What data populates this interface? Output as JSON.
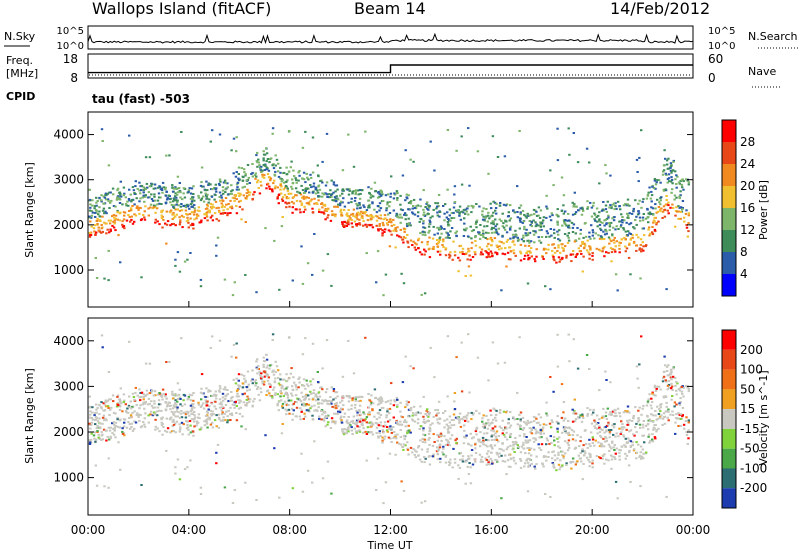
{
  "header": {
    "station": "Wallops Island (fitACF)",
    "beam": "Beam 14",
    "date": "14/Feb/2012"
  },
  "chart_data": [
    {
      "type": "line",
      "panel": "noise",
      "left_label": "N.Sky",
      "right_label": "N.Search",
      "left_ticks": [
        "10^5",
        "10^0"
      ],
      "right_ticks": [
        "10^5",
        "10^0"
      ]
    },
    {
      "type": "line",
      "panel": "frequency",
      "left_label_top": "Freq.",
      "left_label_bottom": "[MHz]",
      "right_label": "Nave",
      "left_ticks": [
        "18",
        "8"
      ],
      "right_ticks": [
        "60",
        "0"
      ],
      "freq_steps": [
        {
          "t": 0.0,
          "mhz": 10.7
        },
        {
          "t": 12.0,
          "mhz": 14.5
        },
        {
          "t": 24.0,
          "mhz": 14.5
        }
      ]
    },
    {
      "type": "text",
      "panel": "cpid",
      "label": "CPID",
      "mode": "tau (fast) -503"
    },
    {
      "type": "heatmap",
      "panel": "power",
      "ylabel": "Slant Range [km]",
      "ylim": [
        180,
        4500
      ],
      "yticks": [
        "4000",
        "3000",
        "2000",
        "1000"
      ],
      "colorbar_label": "Power [dB]",
      "colorbar_ticks": [
        "28",
        "24",
        "20",
        "16",
        "12",
        "8",
        "4"
      ],
      "colors": [
        "#0000ff",
        "#2a5caa",
        "#3d8c5a",
        "#7db56a",
        "#f0c030",
        "#f08a20",
        "#e84818",
        "#ff0000"
      ],
      "main_echo_range_km": [
        [
          0.0,
          1700
        ],
        [
          1.0,
          1900
        ],
        [
          2.0,
          2100
        ],
        [
          3.0,
          2000
        ],
        [
          4.0,
          1950
        ],
        [
          5.0,
          2150
        ],
        [
          6.0,
          2350
        ],
        [
          7.0,
          2850
        ],
        [
          8.0,
          2350
        ],
        [
          9.0,
          2250
        ],
        [
          10.0,
          2000
        ],
        [
          11.0,
          1950
        ],
        [
          12.0,
          1800
        ],
        [
          13.0,
          1400
        ],
        [
          14.0,
          1300
        ],
        [
          15.0,
          1250
        ],
        [
          16.0,
          1350
        ],
        [
          17.0,
          1250
        ],
        [
          18.0,
          1200
        ],
        [
          19.0,
          1250
        ],
        [
          20.0,
          1300
        ],
        [
          21.0,
          1350
        ],
        [
          22.0,
          1450
        ],
        [
          23.0,
          2400
        ],
        [
          23.5,
          1900
        ]
      ]
    },
    {
      "type": "heatmap",
      "panel": "velocity",
      "ylabel": "Slant Range [km]",
      "xlabel": "Time UT",
      "ylim": [
        180,
        4500
      ],
      "yticks": [
        "4000",
        "3000",
        "2000",
        "1000"
      ],
      "xticks": [
        "00:00",
        "04:00",
        "08:00",
        "12:00",
        "16:00",
        "20:00",
        "00:00"
      ],
      "xlim": [
        0,
        24
      ],
      "colorbar_label": "Velocity [m s^-1]",
      "colorbar_ticks": [
        "200",
        "100",
        "50",
        "15",
        "-15",
        "-50",
        "-100",
        "-200"
      ],
      "colors": [
        "#1c3cb0",
        "#2d6e72",
        "#4aa848",
        "#7fd23a",
        "#c8c8c0",
        "#f0a020",
        "#f07018",
        "#e84818",
        "#ff0000"
      ]
    }
  ]
}
